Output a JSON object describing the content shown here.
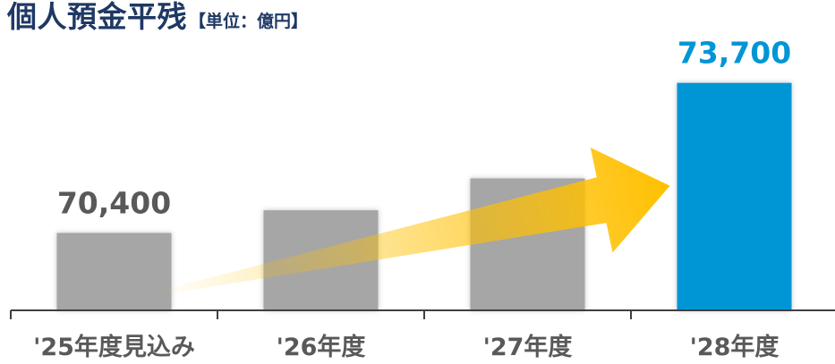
{
  "title": {
    "main": "個人預金平残",
    "unit": "【単位：億円】"
  },
  "colors": {
    "title": "#1f3864",
    "bar_gray": "#a6a6a6",
    "bar_highlight": "#0096d6",
    "label_gray": "#595959",
    "label_highlight": "#0096d6",
    "arrow": "#ffc000",
    "axis": "#404040"
  },
  "chart_data": {
    "type": "bar",
    "title": "個人預金平残",
    "unit": "【単位：億円】",
    "categories": [
      "'25年度見込み",
      "'26年度",
      "'27年度",
      "'28年度"
    ],
    "values": [
      70400,
      70900,
      71600,
      73700
    ],
    "data_labels": [
      "70,400",
      "",
      "",
      "73,700"
    ],
    "highlight_index": 3,
    "ylim": [
      68700,
      74500
    ],
    "grid": false,
    "annotations": [
      "upward arrow from first bar to last bar"
    ]
  }
}
